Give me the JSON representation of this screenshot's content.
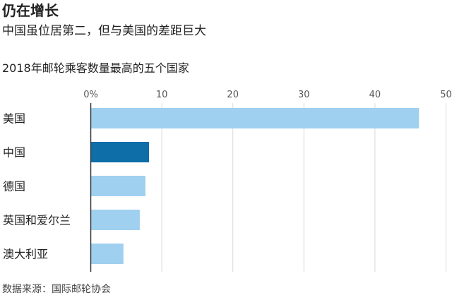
{
  "header": {
    "title": "仍在增长",
    "subtitle": "中国虽位居第二，但与美国的差距巨大",
    "chart_label": "2018年邮轮乘客数量最高的五个国家"
  },
  "footer": {
    "source": "数据来源：国际邮轮协会"
  },
  "colors": {
    "highlight": "#0e6ea8",
    "default": "#9fd0f0",
    "grid": "#d9d9d9",
    "axis": "#333333"
  },
  "chart_data": {
    "type": "bar",
    "orientation": "horizontal",
    "title": "2018年邮轮乘客数量最高的五个国家",
    "categories": [
      "美国",
      "中国",
      "德国",
      "英国和爱尔兰",
      "澳大利亚"
    ],
    "values": [
      46.2,
      8.2,
      7.7,
      6.9,
      4.6
    ],
    "highlight": [
      "中国"
    ],
    "xlim": [
      0,
      50
    ],
    "xticks": [
      0,
      10,
      20,
      30,
      40,
      50
    ],
    "xtick_labels": [
      "0%",
      "10",
      "20",
      "30",
      "40",
      "50"
    ],
    "grid": true
  }
}
